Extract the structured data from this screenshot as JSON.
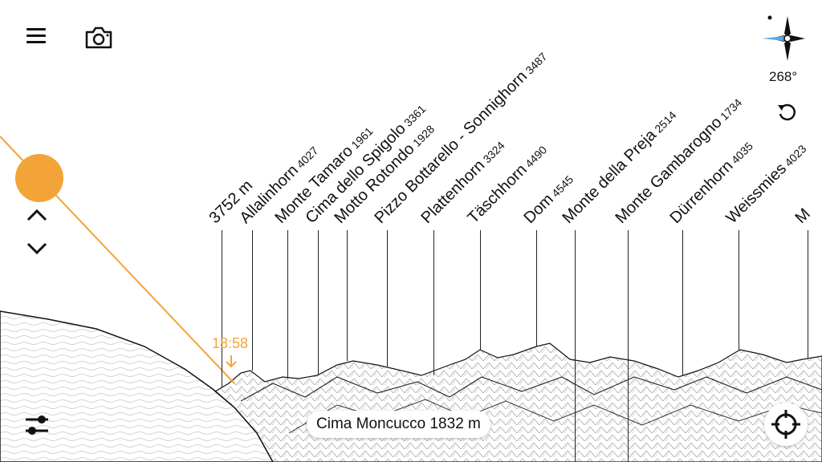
{
  "toolbar": {
    "menu_icon": "hamburger-icon",
    "camera_icon": "camera-icon"
  },
  "compass": {
    "icon": "compass-rose-icon",
    "heading": "268°",
    "reset_icon": "reset-rotation-icon"
  },
  "sun": {
    "time": "18:58",
    "color": "#f3a438"
  },
  "controls": {
    "up_icon": "chevron-up-icon",
    "down_icon": "chevron-down-icon",
    "settings_icon": "sliders-icon",
    "locate_icon": "crosshair-icon"
  },
  "location": {
    "label": "Cima Moncucco 1832 m"
  },
  "peaks": [
    {
      "name": "3752 m",
      "elev": ""
    },
    {
      "name": "Allalinhorn",
      "elev": "4027"
    },
    {
      "name": "Monte Tamaro",
      "elev": "1961"
    },
    {
      "name": "Cima dello Spigolo",
      "elev": "3361"
    },
    {
      "name": "Motto Rotondo",
      "elev": "1928"
    },
    {
      "name": "Pizzo Bottarello - Sonnighorn",
      "elev": "3487"
    },
    {
      "name": "Plattenhorn",
      "elev": "3324"
    },
    {
      "name": "Täschhorn",
      "elev": "4490"
    },
    {
      "name": "Dom",
      "elev": "4545"
    },
    {
      "name": "Monte della Preja",
      "elev": "2514"
    },
    {
      "name": "Monte Gambarogno",
      "elev": "1734"
    },
    {
      "name": "Dürrenhorn",
      "elev": "4035"
    },
    {
      "name": "Weissmies",
      "elev": "4023"
    },
    {
      "name": "M",
      "elev": ""
    }
  ]
}
